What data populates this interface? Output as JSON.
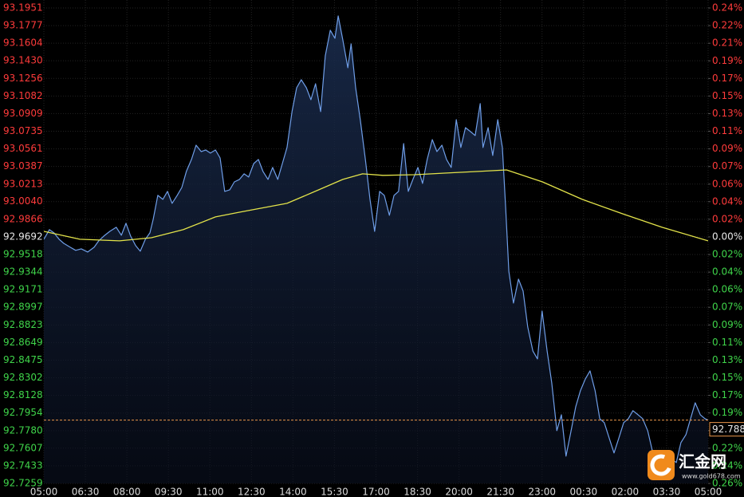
{
  "chart_data": {
    "type": "line",
    "xlim": [
      0,
      1440
    ],
    "xticks": [
      {
        "value": 0,
        "label": "05:00"
      },
      {
        "value": 90,
        "label": "06:30"
      },
      {
        "value": 180,
        "label": "08:00"
      },
      {
        "value": 270,
        "label": "09:30"
      },
      {
        "value": 360,
        "label": "11:00"
      },
      {
        "value": 450,
        "label": "12:30"
      },
      {
        "value": 540,
        "label": "14:00"
      },
      {
        "value": 630,
        "label": "15:30"
      },
      {
        "value": 720,
        "label": "17:00"
      },
      {
        "value": 810,
        "label": "18:30"
      },
      {
        "value": 900,
        "label": "20:00"
      },
      {
        "value": 990,
        "label": "21:30"
      },
      {
        "value": 1080,
        "label": "23:00"
      },
      {
        "value": 1170,
        "label": "00:30"
      },
      {
        "value": 1260,
        "label": "02:00"
      },
      {
        "value": 1350,
        "label": "03:30"
      },
      {
        "value": 1440,
        "label": "05:00"
      }
    ],
    "ylim": [
      92.7259,
      93.1951
    ],
    "yticks": [
      93.1951,
      93.1777,
      93.1604,
      {
        "value": 93.143,
        "label": "93.1430"
      },
      93.1256,
      93.1082,
      93.0909,
      93.0735,
      93.0561,
      93.0387,
      93.0213,
      {
        "value": 93.004,
        "label": "93.0040"
      },
      92.9866,
      92.9692,
      92.9518,
      92.9344,
      92.9171,
      92.8997,
      92.8823,
      92.8649,
      92.8475,
      92.8302,
      92.8128,
      92.7954,
      {
        "value": 92.778,
        "label": "92.7780"
      },
      92.7607,
      92.7433,
      92.7259
    ],
    "y2lim": [
      -0.2616,
      0.2429
    ],
    "y2ticks": [
      {
        "value": 0.2429,
        "label": "0.24%"
      },
      {
        "value": 0.2242,
        "label": "0.22%"
      },
      {
        "value": 0.2055,
        "label": "0.21%"
      },
      {
        "value": 0.1868,
        "label": "0.19%"
      },
      {
        "value": 0.1681,
        "label": "0.17%"
      },
      {
        "value": 0.1495,
        "label": "0.15%"
      },
      {
        "value": 0.1308,
        "label": "0.13%"
      },
      {
        "value": 0.1121,
        "label": "0.11%"
      },
      {
        "value": 0.0934,
        "label": "0.09%"
      },
      {
        "value": 0.0747,
        "label": "0.07%"
      },
      {
        "value": 0.056,
        "label": "0.06%"
      },
      {
        "value": 0.0374,
        "label": "0.04%"
      },
      {
        "value": 0.0187,
        "label": "0.02%"
      },
      {
        "value": 0,
        "label": "0.00%"
      },
      {
        "value": -0.0187,
        "label": "0.02%"
      },
      {
        "value": -0.0374,
        "label": "0.04%"
      },
      {
        "value": -0.056,
        "label": "0.06%"
      },
      {
        "value": -0.0747,
        "label": "0.07%"
      },
      {
        "value": -0.0934,
        "label": "0.09%"
      },
      {
        "value": -0.1121,
        "label": "0.11%"
      },
      {
        "value": -0.1308,
        "label": "0.13%"
      },
      {
        "value": -0.1495,
        "label": "0.15%"
      },
      {
        "value": -0.1681,
        "label": "0.17%"
      },
      {
        "value": -0.1868,
        "label": "0.19%"
      },
      {
        "value": -0.2055,
        "label": "0.21%"
      },
      {
        "value": -0.2242,
        "label": "0.22%"
      },
      {
        "value": -0.2429,
        "label": "0.24%"
      },
      {
        "value": -0.2616,
        "label": "0.26%"
      }
    ],
    "grid": true,
    "last_price": 92.7884,
    "series": [
      {
        "color": "#6f9ee8",
        "x": [
          0,
          12,
          22,
          33,
          43,
          57,
          69,
          81,
          95,
          109,
          119,
          130,
          143,
          157,
          168,
          178,
          188,
          199,
          209,
          220,
          230,
          237,
          247,
          258,
          268,
          278,
          289,
          299,
          309,
          320,
          330,
          341,
          351,
          361,
          372,
          382,
          392,
          403,
          413,
          424,
          434,
          444,
          455,
          465,
          475,
          486,
          496,
          507,
          517,
          527,
          538,
          548,
          558,
          569,
          579,
          589,
          600,
          610,
          621,
          631,
          638,
          648,
          659,
          666,
          676,
          686,
          697,
          707,
          717,
          728,
          738,
          749,
          759,
          769,
          780,
          790,
          800,
          811,
          821,
          831,
          842,
          852,
          863,
          873,
          883,
          894,
          904,
          914,
          925,
          935,
          946,
          952,
          963,
          973,
          984,
          994,
          1001,
          1008,
          1018,
          1029,
          1039,
          1049,
          1060,
          1070,
          1080,
          1091,
          1101,
          1112,
          1122,
          1132,
          1143,
          1153,
          1163,
          1174,
          1184,
          1195,
          1205,
          1215,
          1226,
          1236,
          1246,
          1257,
          1267,
          1277,
          1288,
          1298,
          1309,
          1319,
          1329,
          1340,
          1350,
          1360,
          1371,
          1381,
          1392,
          1402,
          1412,
          1423,
          1433,
          1440
        ],
        "values": [
          92.9669,
          92.9763,
          92.9732,
          92.9669,
          92.9629,
          92.959,
          92.9559,
          92.9574,
          92.9543,
          92.959,
          92.9653,
          92.97,
          92.9747,
          92.9787,
          92.9708,
          92.9826,
          92.97,
          92.9606,
          92.9551,
          92.9669,
          92.9732,
          92.9865,
          93.0102,
          93.0062,
          93.0141,
          93.0023,
          93.0102,
          93.018,
          93.0338,
          93.0456,
          93.0597,
          93.0534,
          93.055,
          93.0519,
          93.055,
          93.0471,
          93.0141,
          93.0157,
          93.0235,
          93.0259,
          93.0314,
          93.0283,
          93.0416,
          93.0456,
          93.0338,
          93.0259,
          93.0377,
          93.0259,
          93.0416,
          93.0574,
          93.0928,
          93.1164,
          93.1243,
          93.1164,
          93.1046,
          93.1203,
          93.0928,
          93.1479,
          93.1731,
          93.1652,
          93.1872,
          93.1636,
          93.1361,
          93.1597,
          93.1164,
          93.0849,
          93.0456,
          93.0062,
          92.9747,
          93.0141,
          93.0102,
          92.9905,
          93.0102,
          93.0141,
          93.0613,
          93.0141,
          93.0259,
          93.0377,
          93.022,
          93.0456,
          93.0652,
          93.0534,
          93.0597,
          93.0456,
          93.0377,
          93.0849,
          93.0574,
          93.077,
          93.0731,
          93.0692,
          93.1007,
          93.0574,
          93.077,
          93.0495,
          93.0849,
          93.0574,
          92.9983,
          92.9354,
          92.9039,
          92.9275,
          92.9157,
          92.8803,
          92.8567,
          92.8488,
          92.896,
          92.8567,
          92.8252,
          92.778,
          92.7937,
          92.7528,
          92.778,
          92.8016,
          92.8173,
          92.8291,
          92.837,
          92.8173,
          92.7898,
          92.7859,
          92.7701,
          92.756,
          92.7701,
          92.7859,
          92.7898,
          92.7977,
          92.7937,
          92.7898,
          92.778,
          92.7583,
          92.7465,
          92.7386,
          92.7308,
          92.7504,
          92.7465,
          92.7662,
          92.7741,
          92.7898,
          92.8055,
          92.7937,
          92.7898,
          92.7884
        ]
      },
      {
        "color": "#e3e34a",
        "x": [
          0,
          78,
          164,
          233,
          302,
          372,
          424,
          527,
          596,
          648,
          691,
          735,
          804,
          873,
          942,
          1003,
          1081,
          1167,
          1254,
          1340,
          1440
        ],
        "values": [
          92.9747,
          92.9669,
          92.9653,
          92.9684,
          92.9763,
          92.9889,
          92.9936,
          93.0023,
          93.0157,
          93.0259,
          93.0314,
          93.0299,
          93.0306,
          93.0322,
          93.0338,
          93.0353,
          93.0235,
          93.0062,
          92.9921,
          92.9787,
          92.9653
        ]
      }
    ]
  },
  "watermark": {
    "name": "汇金网",
    "url": "www.gold678.com"
  }
}
